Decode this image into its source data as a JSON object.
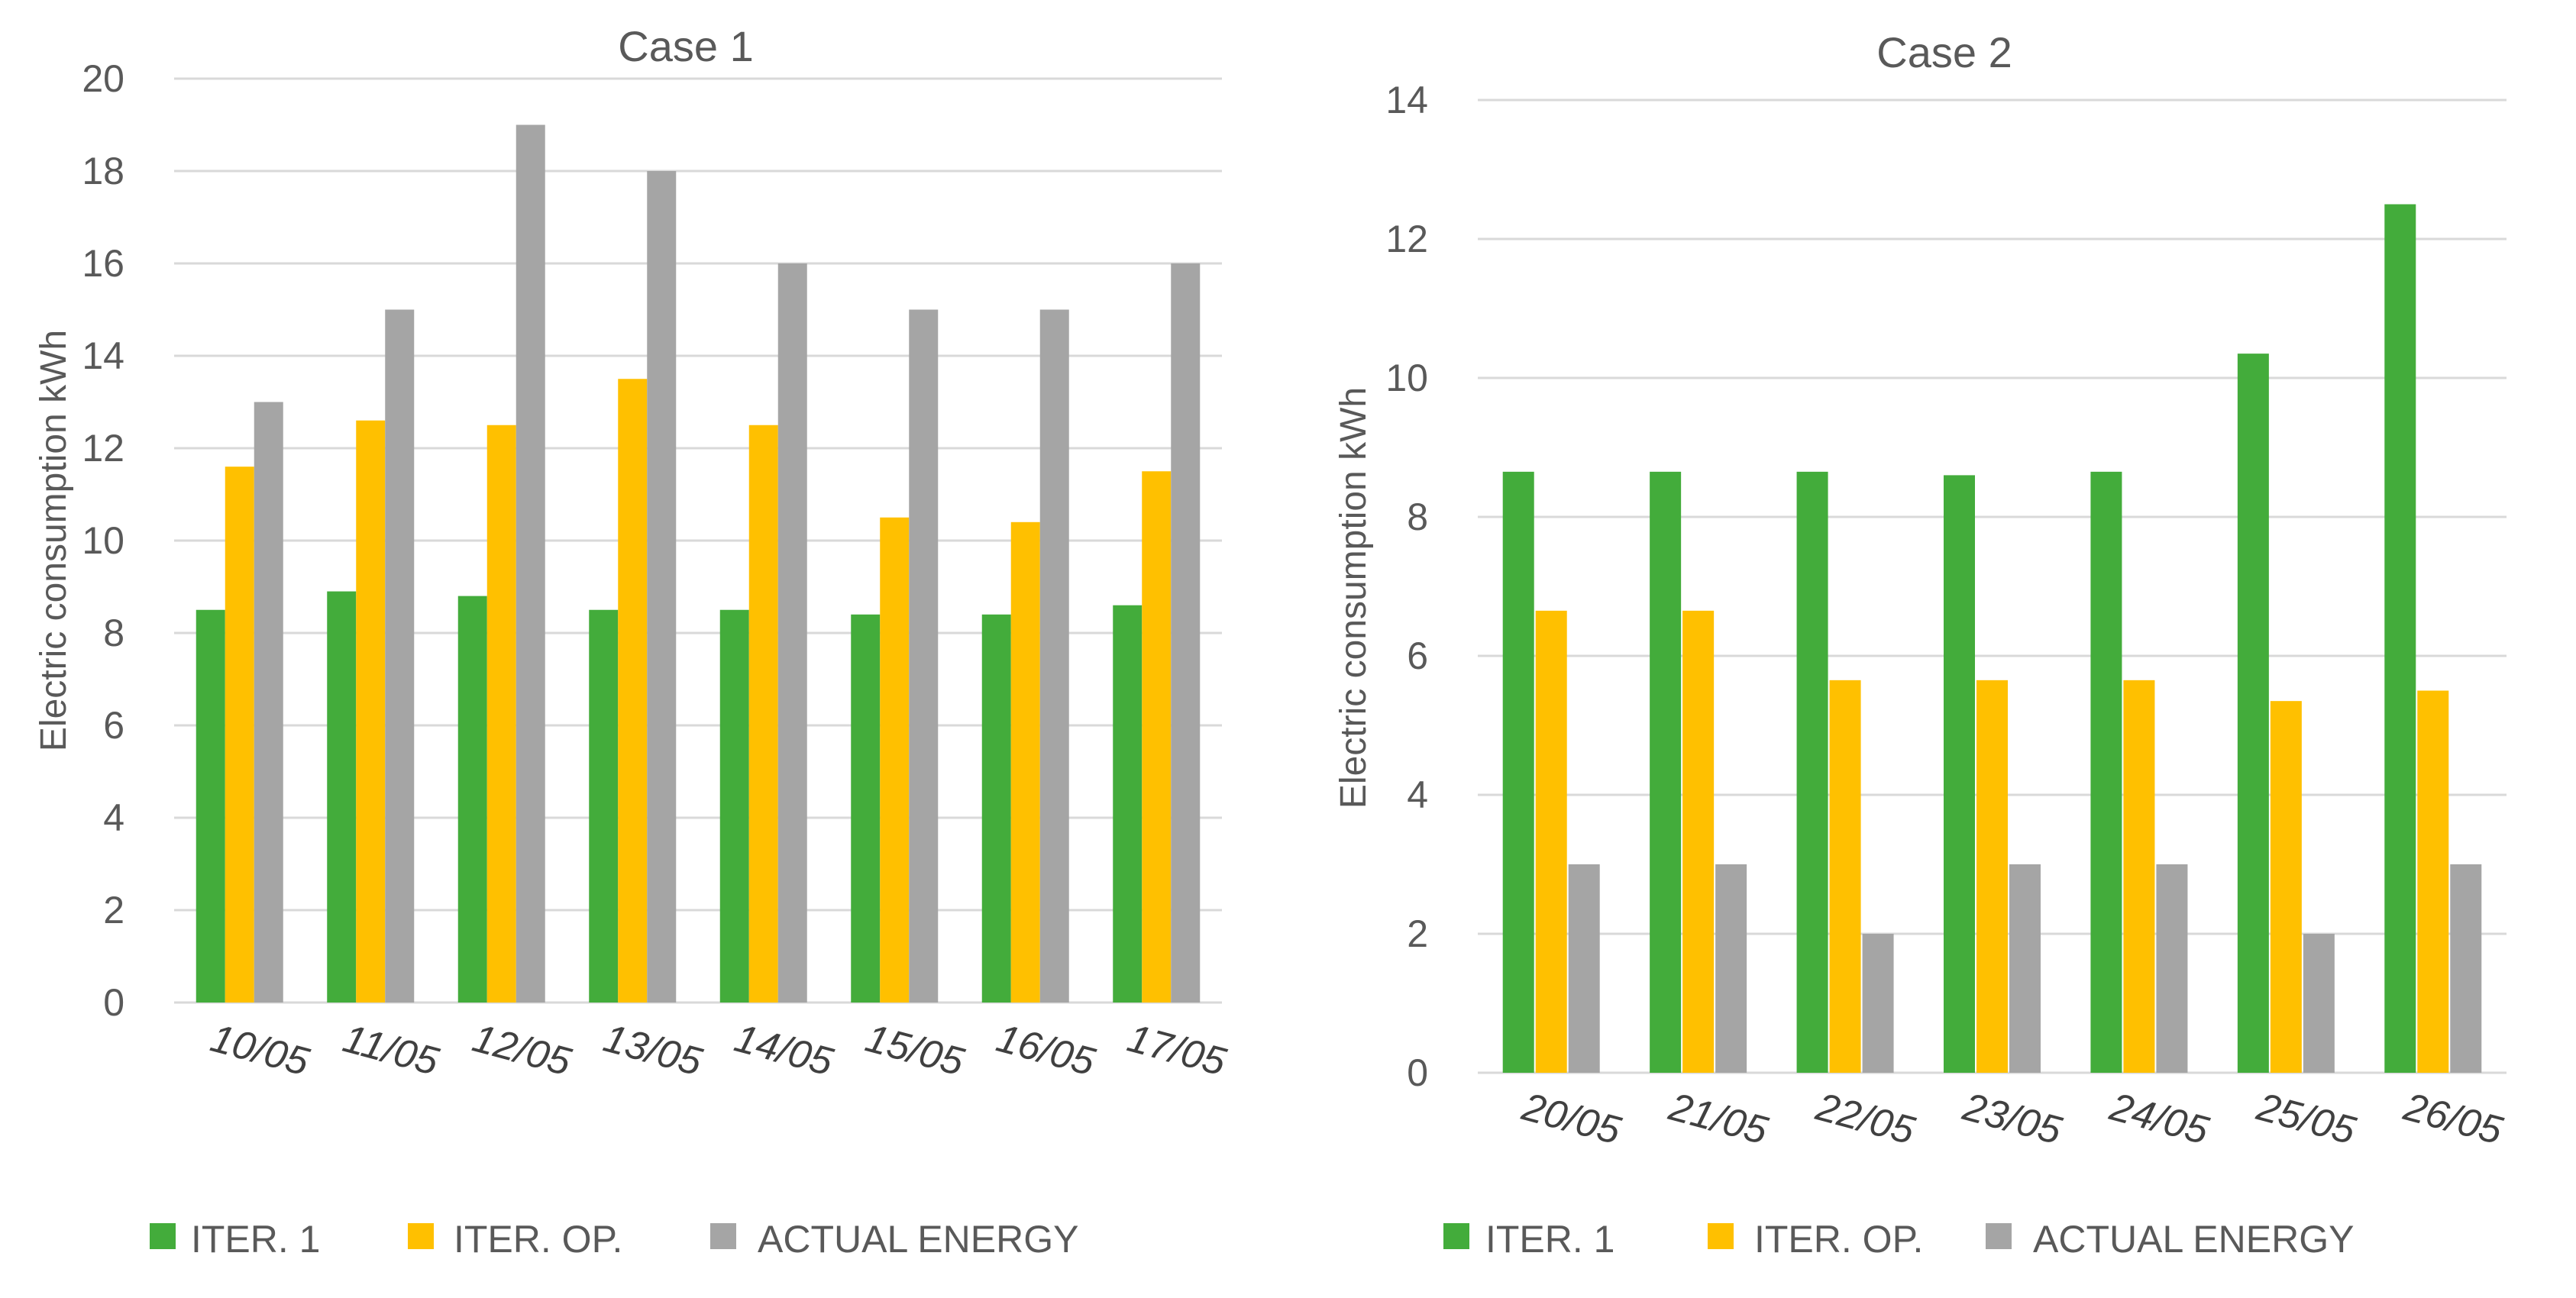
{
  "colors": {
    "iter1": "#43ac3b",
    "iterop": "#ffc000",
    "actual": "#a5a5a5"
  },
  "chart_data": [
    {
      "type": "bar",
      "title": "Case 1",
      "ylabel": "Electric consumption kWh",
      "xlabel": "",
      "ylim": [
        0,
        20
      ],
      "yticks": [
        "0",
        "2",
        "4",
        "6",
        "8",
        "10",
        "12",
        "14",
        "16",
        "18",
        "20"
      ],
      "categories": [
        "10/05",
        "11/05",
        "12/05",
        "13/05",
        "14/05",
        "15/05",
        "16/05",
        "17/05"
      ],
      "series": [
        {
          "name": "ITER. 1",
          "values": [
            8.5,
            8.9,
            8.8,
            8.5,
            8.5,
            8.4,
            8.4,
            8.6
          ]
        },
        {
          "name": "ITER. OP.",
          "values": [
            11.6,
            12.6,
            12.5,
            13.5,
            12.5,
            10.5,
            10.4,
            11.5
          ]
        },
        {
          "name": "ACTUAL ENERGY",
          "values": [
            13,
            15,
            19,
            18,
            16,
            15,
            15,
            16
          ]
        }
      ],
      "legend_position": "bottom"
    },
    {
      "type": "bar",
      "title": "Case 2",
      "ylabel": "Electric consumption kWh",
      "xlabel": "",
      "ylim": [
        0,
        14
      ],
      "yticks": [
        "0",
        "2",
        "4",
        "6",
        "8",
        "10",
        "12",
        "14"
      ],
      "categories": [
        "20/05",
        "21/05",
        "22/05",
        "23/05",
        "24/05",
        "25/05",
        "26/05"
      ],
      "series": [
        {
          "name": "ITER. 1",
          "values": [
            8.65,
            8.65,
            8.65,
            8.6,
            8.65,
            10.35,
            12.5
          ]
        },
        {
          "name": "ITER. OP.",
          "values": [
            6.65,
            6.65,
            5.65,
            5.65,
            5.65,
            5.35,
            5.5
          ]
        },
        {
          "name": "ACTUAL ENERGY",
          "values": [
            3,
            3,
            2,
            3,
            3,
            2,
            3
          ]
        }
      ],
      "legend_position": "bottom"
    }
  ]
}
